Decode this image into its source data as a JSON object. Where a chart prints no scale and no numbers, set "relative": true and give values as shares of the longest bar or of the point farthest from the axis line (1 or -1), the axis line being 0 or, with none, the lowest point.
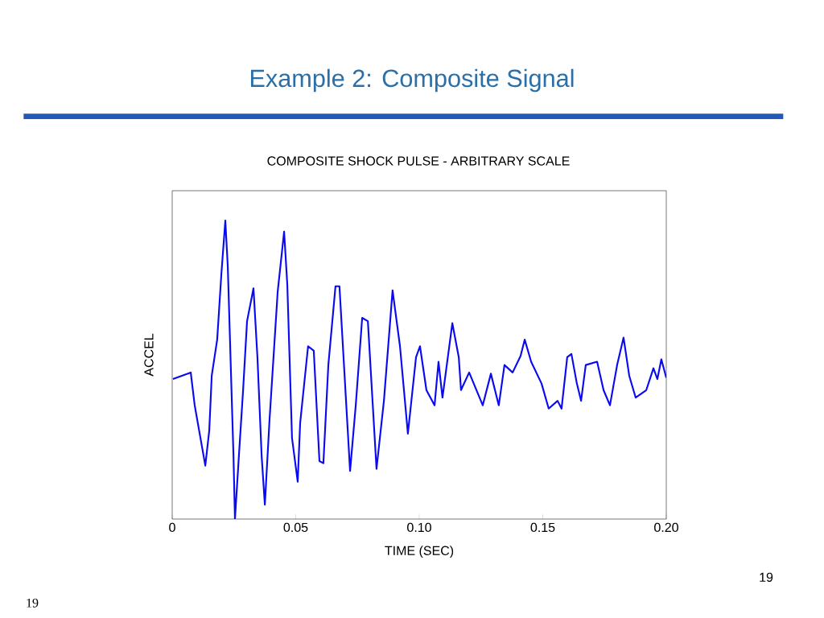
{
  "chart_data": {
    "type": "line",
    "title": "Example 2:  Composite Signal",
    "subtitle": "COMPOSITE SHOCK PULSE - ARBITRARY SCALE",
    "xlabel": "TIME (SEC)",
    "ylabel": "ACCEL",
    "relative": true,
    "grid": false,
    "marker": "none",
    "line_style": "solid",
    "xlim": [
      0,
      0.2
    ],
    "xticks": [
      0,
      0.05,
      {
        "value": 0.1,
        "label": "0.10"
      },
      0.15,
      {
        "value": 0.2,
        "label": "0.20"
      }
    ],
    "annotations": [
      "19",
      "19"
    ],
    "series": [
      {
        "color": "#0a0af0",
        "x": [
          0.0003,
          0.0075,
          0.0091,
          0.0134,
          0.015,
          0.016,
          0.0182,
          0.0199,
          0.0215,
          0.0225,
          0.0248,
          0.0254,
          0.027,
          0.0287,
          0.0303,
          0.0329,
          0.0345,
          0.0362,
          0.0375,
          0.0394,
          0.0427,
          0.0453,
          0.0466,
          0.0485,
          0.0508,
          0.0518,
          0.055,
          0.0573,
          0.0596,
          0.0612,
          0.0632,
          0.0661,
          0.0677,
          0.072,
          0.0743,
          0.0769,
          0.0792,
          0.0827,
          0.0857,
          0.0892,
          0.0922,
          0.0954,
          0.0987,
          0.1003,
          0.1029,
          0.1062,
          0.1078,
          0.1094,
          0.1134,
          0.116,
          0.1169,
          0.1202,
          0.1257,
          0.129,
          0.1322,
          0.1345,
          0.1378,
          0.141,
          0.1427,
          0.1453,
          0.1495,
          0.1524,
          0.156,
          0.1576,
          0.1599,
          0.1616,
          0.1638,
          0.1655,
          0.1674,
          0.172,
          0.1746,
          0.1772,
          0.1801,
          0.1827,
          0.185,
          0.1876,
          0.1919,
          0.1948,
          0.1964,
          0.198,
          0.2
        ],
        "values": [
          0.469,
          0.491,
          0.381,
          0.179,
          0.297,
          0.48,
          0.601,
          0.821,
          1,
          0.846,
          0.212,
          0,
          0.212,
          0.432,
          0.663,
          0.773,
          0.542,
          0.212,
          0.048,
          0.333,
          0.762,
          0.963,
          0.784,
          0.271,
          0.125,
          0.322,
          0.579,
          0.564,
          0.194,
          0.187,
          0.516,
          0.78,
          0.78,
          0.161,
          0.381,
          0.674,
          0.663,
          0.168,
          0.396,
          0.766,
          0.579,
          0.286,
          0.542,
          0.579,
          0.432,
          0.381,
          0.527,
          0.407,
          0.656,
          0.542,
          0.432,
          0.491,
          0.381,
          0.487,
          0.381,
          0.516,
          0.491,
          0.546,
          0.601,
          0.527,
          0.454,
          0.37,
          0.396,
          0.37,
          0.542,
          0.553,
          0.454,
          0.396,
          0.516,
          0.527,
          0.432,
          0.381,
          0.516,
          0.608,
          0.48,
          0.407,
          0.432,
          0.505,
          0.469,
          0.535,
          0.473
        ]
      }
    ]
  }
}
